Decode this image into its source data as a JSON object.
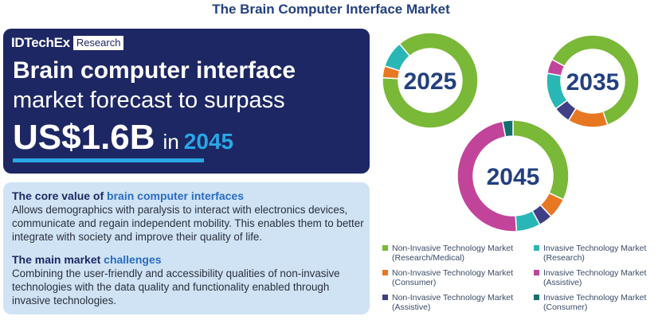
{
  "title": "The Brain Computer Interface Market",
  "banner": {
    "brand": "IDTechEx",
    "brand_tag": "Research",
    "line1": "Brain computer interface",
    "line2": "market forecast to surpass",
    "amount": "US$1.6B",
    "in_word": "in",
    "year": "2045"
  },
  "info": {
    "core_title_prefix": "The core value of ",
    "core_title_accent": "brain computer interfaces",
    "core_body": "Allows demographics with paralysis to interact with electronics devices, communicate and regain independent mobility. This enables them to better integrate with society and improve their quality of life.",
    "challenges_title_prefix": "The main market ",
    "challenges_title_accent": "challenges",
    "challenges_body": "Combining the user-friendly and accessibility qualities of non-invasive technologies with the data quality and functionality enabled through invasive technologies."
  },
  "colors": {
    "non_invasive_research": "#7ab838",
    "invasive_research": "#29b7b5",
    "non_invasive_consumer": "#e87722",
    "invasive_assistive": "#c2449a",
    "non_invasive_assistive": "#3f3f86",
    "invasive_consumer": "#11706e"
  },
  "chart_data": [
    {
      "type": "pie",
      "title": "2025",
      "series": [
        {
          "name": "Non-Invasive Technology Market (Research/Medical)",
          "value": 87
        },
        {
          "name": "Non-Invasive Technology Market (Consumer)",
          "value": 4
        },
        {
          "name": "Invasive Technology Market (Research)",
          "value": 9
        }
      ]
    },
    {
      "type": "pie",
      "title": "2035",
      "series": [
        {
          "name": "Non-Invasive Technology Market (Research/Medical)",
          "value": 62
        },
        {
          "name": "Non-Invasive Technology Market (Consumer)",
          "value": 14
        },
        {
          "name": "Non-Invasive Technology Market (Assistive)",
          "value": 6
        },
        {
          "name": "Invasive Technology Market (Research)",
          "value": 13
        },
        {
          "name": "Invasive Technology Market (Assistive)",
          "value": 5
        }
      ]
    },
    {
      "type": "pie",
      "title": "2045",
      "series": [
        {
          "name": "Non-Invasive Technology Market (Research/Medical)",
          "value": 32
        },
        {
          "name": "Non-Invasive Technology Market (Consumer)",
          "value": 6
        },
        {
          "name": "Non-Invasive Technology Market (Assistive)",
          "value": 4
        },
        {
          "name": "Invasive Technology Market (Research)",
          "value": 7
        },
        {
          "name": "Invasive Technology Market (Assistive)",
          "value": 48
        },
        {
          "name": "Invasive Technology Market (Consumer)",
          "value": 3
        }
      ]
    }
  ],
  "legend": [
    {
      "label": "Non-Invasive Technology Market (Research/Medical)",
      "color": "#7ab838"
    },
    {
      "label": "Invasive Technology Market (Research)",
      "color": "#29b7b5"
    },
    {
      "label": "Non-Invasive Technology Market (Consumer)",
      "color": "#e87722"
    },
    {
      "label": "Invasive Technology Market (Assistive)",
      "color": "#c2449a"
    },
    {
      "label": "Non-Invasive Technology Market (Assistive)",
      "color": "#3f3f86"
    },
    {
      "label": "Invasive Technology Market (Consumer)",
      "color": "#11706e"
    }
  ]
}
